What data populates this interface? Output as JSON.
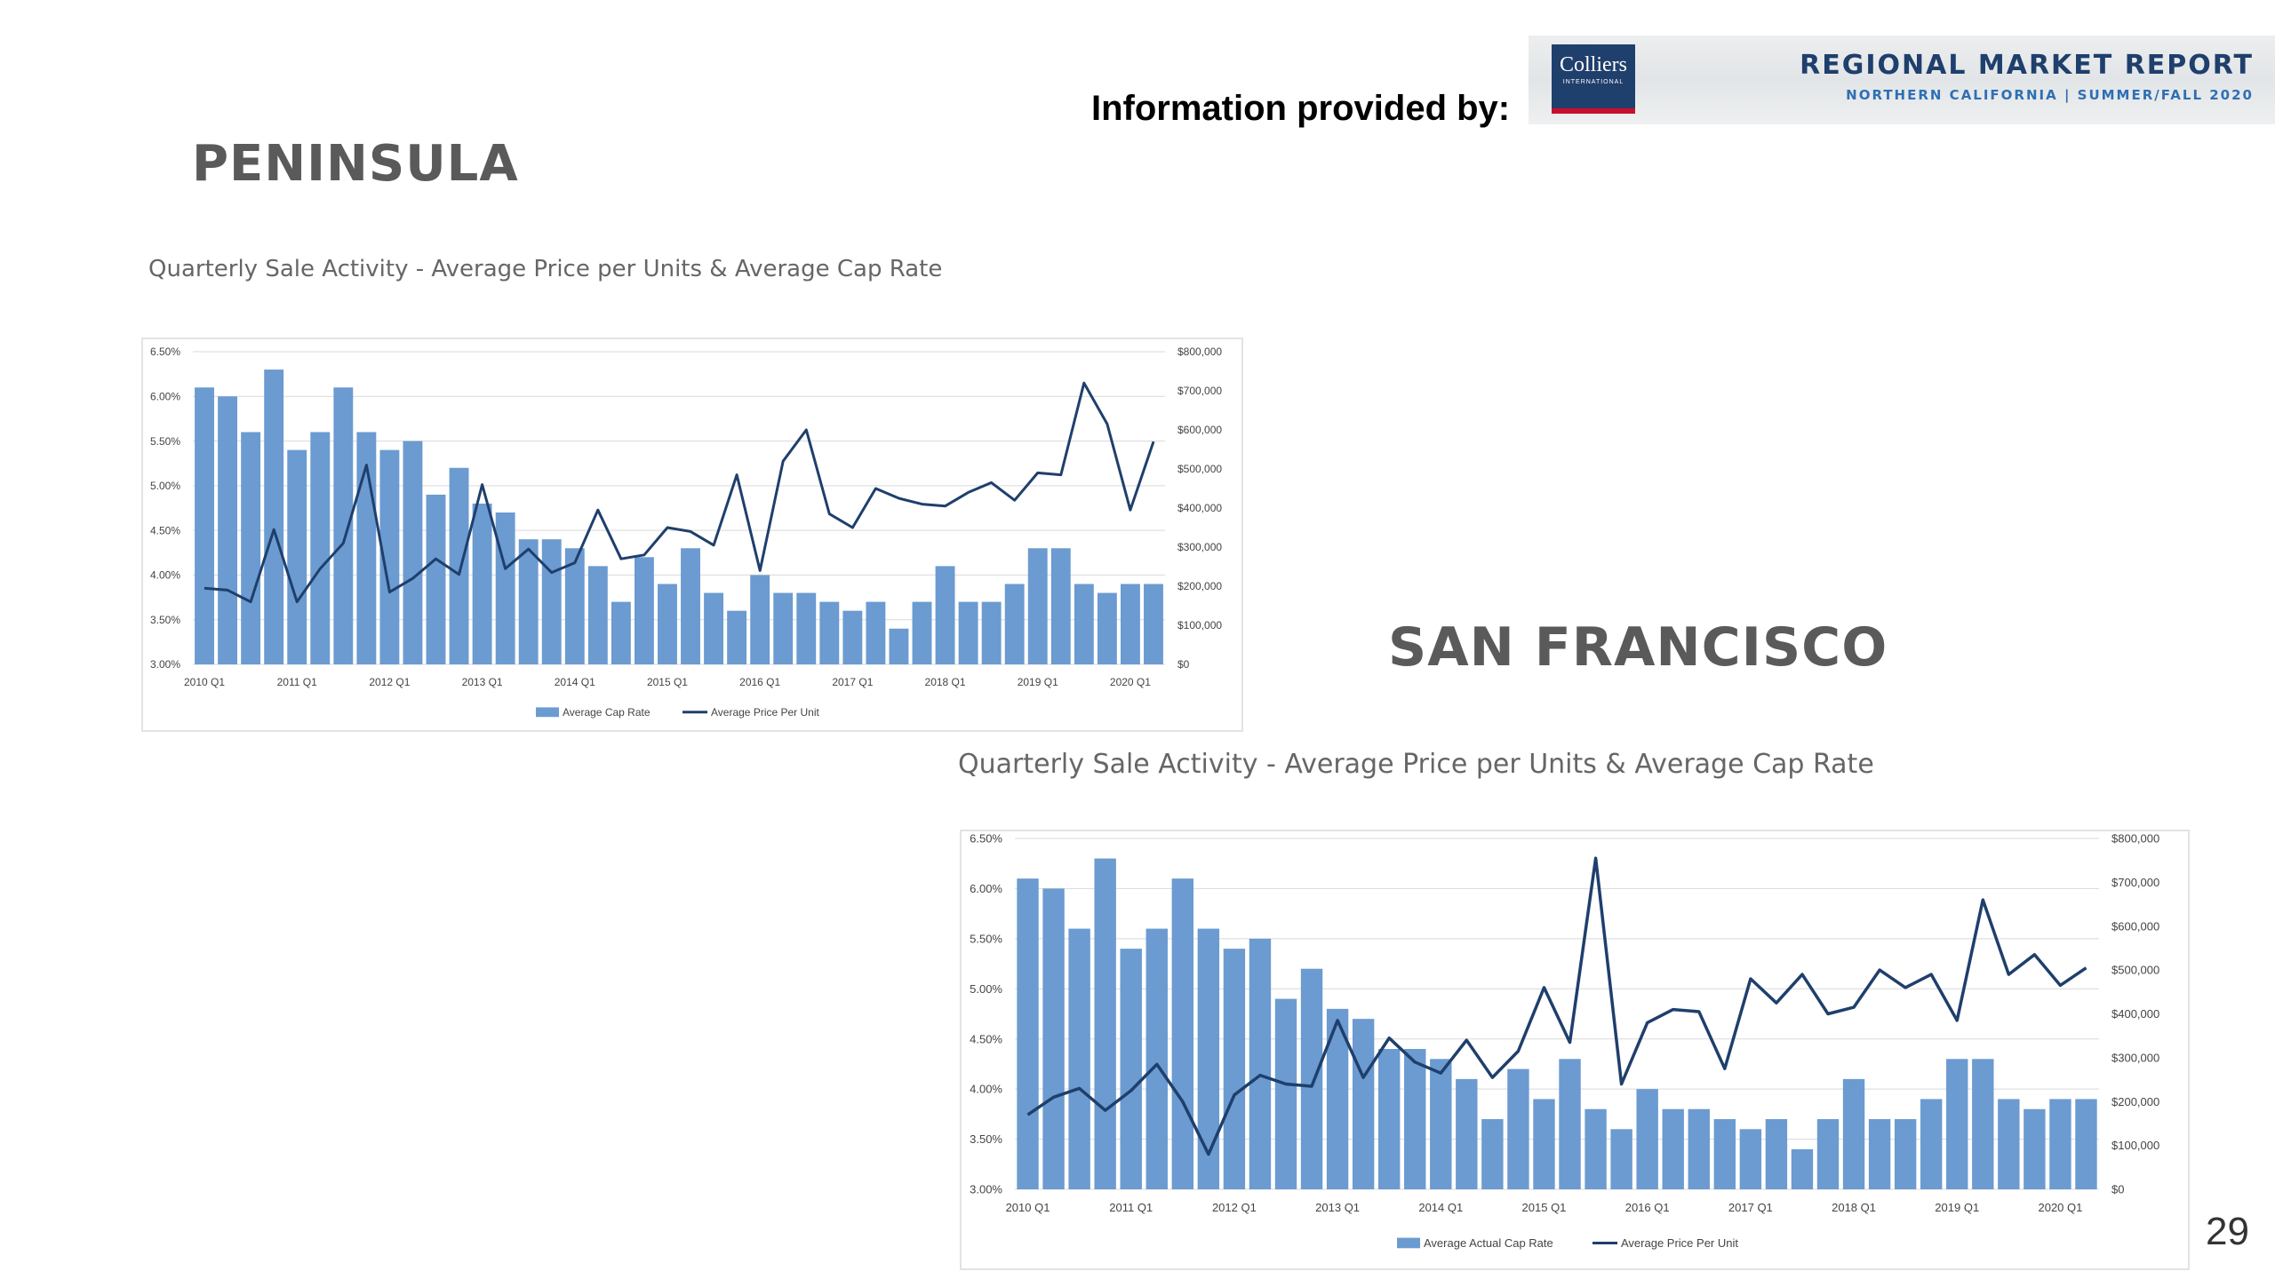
{
  "header": {
    "provided_by": "Information provided by:",
    "logo_text": "Colliers",
    "logo_sub": "INTERNATIONAL",
    "report_title": "REGIONAL MARKET REPORT",
    "report_subtitle": "NORTHERN CALIFORNIA | SUMMER/FALL 2020"
  },
  "sections": {
    "peninsula": {
      "region": "PENINSULA",
      "chart_title": "Quarterly Sale Activity - Average Price per Units & Average Cap Rate"
    },
    "san_francisco": {
      "region": "SAN FRANCISCO",
      "chart_title": "Quarterly Sale Activity - Average Price per Units & Average Cap Rate"
    }
  },
  "page_number": "29",
  "colors": {
    "bar": "#6b9bd0",
    "line": "#1f3f6c",
    "grid": "#d9d9d9"
  },
  "chart_data": [
    {
      "type": "bar",
      "categories": [
        "2010 Q1",
        "2010 Q2",
        "2010 Q3",
        "2010 Q4",
        "2011 Q1",
        "2011 Q2",
        "2011 Q3",
        "2011 Q4",
        "2012 Q1",
        "2012 Q2",
        "2012 Q3",
        "2012 Q4",
        "2013 Q1",
        "2013 Q2",
        "2013 Q3",
        "2013 Q4",
        "2014 Q1",
        "2014 Q2",
        "2014 Q3",
        "2014 Q4",
        "2015 Q1",
        "2015 Q2",
        "2015 Q3",
        "2015 Q4",
        "2016 Q1",
        "2016 Q2",
        "2016 Q3",
        "2016 Q4",
        "2017 Q1",
        "2017 Q2",
        "2017 Q3",
        "2017 Q4",
        "2018 Q1",
        "2018 Q2",
        "2018 Q3",
        "2018 Q4",
        "2019 Q1",
        "2019 Q2",
        "2019 Q3",
        "2019 Q4",
        "2020 Q1",
        "2020 Q2"
      ],
      "x_tick_labels": [
        "2010 Q1",
        "2011 Q1",
        "2012 Q1",
        "2013 Q1",
        "2014 Q1",
        "2015 Q1",
        "2016 Q1",
        "2017 Q1",
        "2018 Q1",
        "2019 Q1",
        "2020 Q1"
      ],
      "series": [
        {
          "name": "Average Cap Rate",
          "type": "bar",
          "axis": "left",
          "values": [
            6.1,
            6.0,
            5.6,
            6.3,
            5.4,
            5.6,
            6.1,
            5.6,
            5.4,
            5.5,
            4.9,
            5.2,
            4.8,
            4.7,
            4.4,
            4.4,
            4.3,
            4.1,
            3.7,
            4.2,
            3.9,
            4.3,
            3.8,
            3.6,
            4.0,
            3.8,
            3.8,
            3.7,
            3.6,
            3.7,
            3.4,
            3.7,
            4.1,
            3.7,
            3.7,
            3.9,
            4.3,
            4.3,
            3.9,
            3.8,
            3.9,
            3.9
          ]
        },
        {
          "name": "Average Price Per Unit",
          "type": "line",
          "axis": "right",
          "values": [
            195000,
            190000,
            160000,
            345000,
            160000,
            245000,
            310000,
            510000,
            185000,
            220000,
            270000,
            230000,
            460000,
            245000,
            295000,
            235000,
            260000,
            395000,
            270000,
            280000,
            350000,
            340000,
            305000,
            485000,
            240000,
            520000,
            600000,
            385000,
            350000,
            450000,
            425000,
            410000,
            405000,
            440000,
            465000,
            420000,
            490000,
            485000,
            720000,
            615000,
            395000,
            570000
          ]
        }
      ],
      "y_left": {
        "min": 3.0,
        "max": 6.5,
        "ticks": [
          "3.00%",
          "3.50%",
          "4.00%",
          "4.50%",
          "5.00%",
          "5.50%",
          "6.00%",
          "6.50%"
        ]
      },
      "y_right": {
        "min": 0,
        "max": 800000,
        "ticks": [
          "$0",
          "$100,000",
          "$200,000",
          "$300,000",
          "$400,000",
          "$500,000",
          "$600,000",
          "$700,000",
          "$800,000"
        ]
      },
      "legend": [
        "Average Cap Rate",
        "Average Price Per Unit"
      ],
      "legend_position": "bottom",
      "grid": true
    },
    {
      "type": "bar",
      "categories": [
        "2010 Q1",
        "2010 Q2",
        "2010 Q3",
        "2010 Q4",
        "2011 Q1",
        "2011 Q2",
        "2011 Q3",
        "2011 Q4",
        "2012 Q1",
        "2012 Q2",
        "2012 Q3",
        "2012 Q4",
        "2013 Q1",
        "2013 Q2",
        "2013 Q3",
        "2013 Q4",
        "2014 Q1",
        "2014 Q2",
        "2014 Q3",
        "2014 Q4",
        "2015 Q1",
        "2015 Q2",
        "2015 Q3",
        "2015 Q4",
        "2016 Q1",
        "2016 Q2",
        "2016 Q3",
        "2016 Q4",
        "2017 Q1",
        "2017 Q2",
        "2017 Q3",
        "2017 Q4",
        "2018 Q1",
        "2018 Q2",
        "2018 Q3",
        "2018 Q4",
        "2019 Q1",
        "2019 Q2",
        "2019 Q3",
        "2019 Q4",
        "2020 Q1",
        "2020 Q2"
      ],
      "x_tick_labels": [
        "2010 Q1",
        "2011 Q1",
        "2012 Q1",
        "2013 Q1",
        "2014 Q1",
        "2015 Q1",
        "2016 Q1",
        "2017 Q1",
        "2018 Q1",
        "2019 Q1",
        "2020 Q1"
      ],
      "series": [
        {
          "name": "Average Actual Cap Rate",
          "type": "bar",
          "axis": "left",
          "values": [
            6.1,
            6.0,
            5.6,
            6.3,
            5.4,
            5.6,
            6.1,
            5.6,
            5.4,
            5.5,
            4.9,
            5.2,
            4.8,
            4.7,
            4.4,
            4.4,
            4.3,
            4.1,
            3.7,
            4.2,
            3.9,
            4.3,
            3.8,
            3.6,
            4.0,
            3.8,
            3.8,
            3.7,
            3.6,
            3.7,
            3.4,
            3.7,
            4.1,
            3.7,
            3.7,
            3.9,
            4.3,
            4.3,
            3.9,
            3.8,
            3.9,
            3.9
          ]
        },
        {
          "name": "Average Price Per Unit",
          "type": "line",
          "axis": "right",
          "values": [
            170000,
            210000,
            230000,
            180000,
            225000,
            285000,
            200000,
            80000,
            215000,
            260000,
            240000,
            235000,
            385000,
            255000,
            345000,
            290000,
            265000,
            340000,
            255000,
            315000,
            460000,
            335000,
            755000,
            240000,
            380000,
            410000,
            405000,
            275000,
            480000,
            425000,
            490000,
            400000,
            415000,
            500000,
            460000,
            490000,
            385000,
            660000,
            490000,
            535000,
            465000,
            505000
          ]
        }
      ],
      "y_left": {
        "min": 3.0,
        "max": 6.5,
        "ticks": [
          "3.00%",
          "3.50%",
          "4.00%",
          "4.50%",
          "5.00%",
          "5.50%",
          "6.00%",
          "6.50%"
        ]
      },
      "y_right": {
        "min": 0,
        "max": 800000,
        "ticks": [
          "$0",
          "$100,000",
          "$200,000",
          "$300,000",
          "$400,000",
          "$500,000",
          "$600,000",
          "$700,000",
          "$800,000"
        ]
      },
      "legend": [
        "Average Actual Cap Rate",
        "Average Price Per Unit"
      ],
      "legend_position": "bottom",
      "grid": true
    }
  ]
}
